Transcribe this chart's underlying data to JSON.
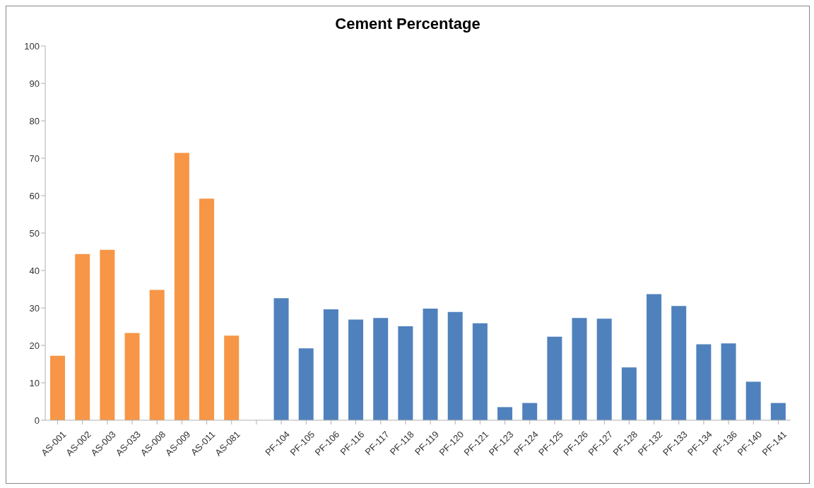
{
  "chart_data": {
    "type": "bar",
    "title": "Cement Percentage",
    "categories": [
      "AS-001",
      "AS-002",
      "AS-003",
      "AS-033",
      "AS-008",
      "AS-009",
      "AS-011",
      "AS-081",
      null,
      "PF-104",
      "PF-105",
      "PF-106",
      "PF-116",
      "PF-117",
      "PF-118",
      "PF-119",
      "PF-120",
      "PF-121",
      "PF-123",
      "PF-124",
      "PF-125",
      "PF-126",
      "PF-127",
      "PF-128",
      "PF-132",
      "PF-133",
      "PF-134",
      "PF-136",
      "PF-140",
      "PF-141"
    ],
    "values": [
      17.2,
      44.4,
      45.5,
      23.3,
      34.8,
      71.4,
      59.2,
      22.6,
      null,
      32.6,
      19.2,
      29.6,
      26.9,
      27.3,
      25.1,
      29.8,
      28.9,
      25.9,
      3.5,
      4.6,
      22.3,
      27.3,
      27.1,
      14.1,
      33.7,
      30.5,
      20.3,
      20.5,
      10.3,
      4.6
    ],
    "colors": [
      "#f79646",
      "#f79646",
      "#f79646",
      "#f79646",
      "#f79646",
      "#f79646",
      "#f79646",
      "#f79646",
      null,
      "#4f81bd",
      "#4f81bd",
      "#4f81bd",
      "#4f81bd",
      "#4f81bd",
      "#4f81bd",
      "#4f81bd",
      "#4f81bd",
      "#4f81bd",
      "#4f81bd",
      "#4f81bd",
      "#4f81bd",
      "#4f81bd",
      "#4f81bd",
      "#4f81bd",
      "#4f81bd",
      "#4f81bd",
      "#4f81bd",
      "#4f81bd",
      "#4f81bd",
      "#4f81bd"
    ],
    "ylim": [
      0,
      100
    ],
    "yticks": [
      0,
      10,
      20,
      30,
      40,
      50,
      60,
      70,
      80,
      90,
      100
    ],
    "grid": false
  }
}
